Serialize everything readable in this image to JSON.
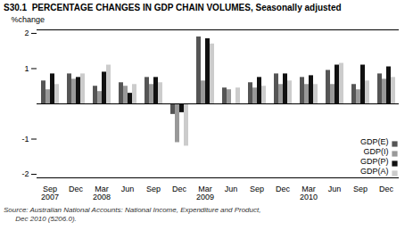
{
  "chart_data": {
    "type": "bar",
    "title": "S30.1  PERCENTAGE CHANGES IN GDP CHAIN VOLUMES, Seasonally adjusted",
    "ylabel": "%change",
    "caption": "Source: Australian National Accounts: National Income, Expenditure and Product,\n      Dec 2010 (5206.0).",
    "categories": [
      "Sep\n2007",
      "Dec",
      "Mar\n2008",
      "Jun",
      "Sep",
      "Dec",
      "Mar\n2009",
      "Jun",
      "Sep",
      "Dec",
      "Mar\n2010",
      "Jun",
      "Sep",
      "Dec"
    ],
    "series": [
      {
        "name": "GDP(E)",
        "color": "#555555",
        "values": [
          0.65,
          0.85,
          0.5,
          0.6,
          0.75,
          -0.3,
          1.9,
          0.45,
          0.6,
          0.85,
          0.75,
          0.95,
          0.55,
          0.85
        ]
      },
      {
        "name": "GDP(I)",
        "color": "#999999",
        "values": [
          0.4,
          0.7,
          0.35,
          0.5,
          0.55,
          -1.1,
          0.65,
          0.4,
          0.45,
          0.55,
          0.55,
          0.55,
          0.4,
          0.7
        ]
      },
      {
        "name": "GDP(P)",
        "color": "#111111",
        "values": [
          0.85,
          0.75,
          0.9,
          0.3,
          0.75,
          -0.25,
          1.85,
          0.0,
          0.75,
          0.85,
          0.8,
          1.1,
          1.1,
          1.05
        ]
      },
      {
        "name": "GDP(A)",
        "color": "#cccccc",
        "values": [
          0.55,
          0.85,
          1.1,
          0.55,
          0.6,
          -1.2,
          1.7,
          0.45,
          0.5,
          0.65,
          0.55,
          1.15,
          0.65,
          0.75
        ]
      }
    ],
    "ylim": [
      -2.1,
      2.1
    ],
    "yticks": [
      -2,
      -1,
      1,
      2
    ],
    "grid": false,
    "legend": "lower right"
  }
}
